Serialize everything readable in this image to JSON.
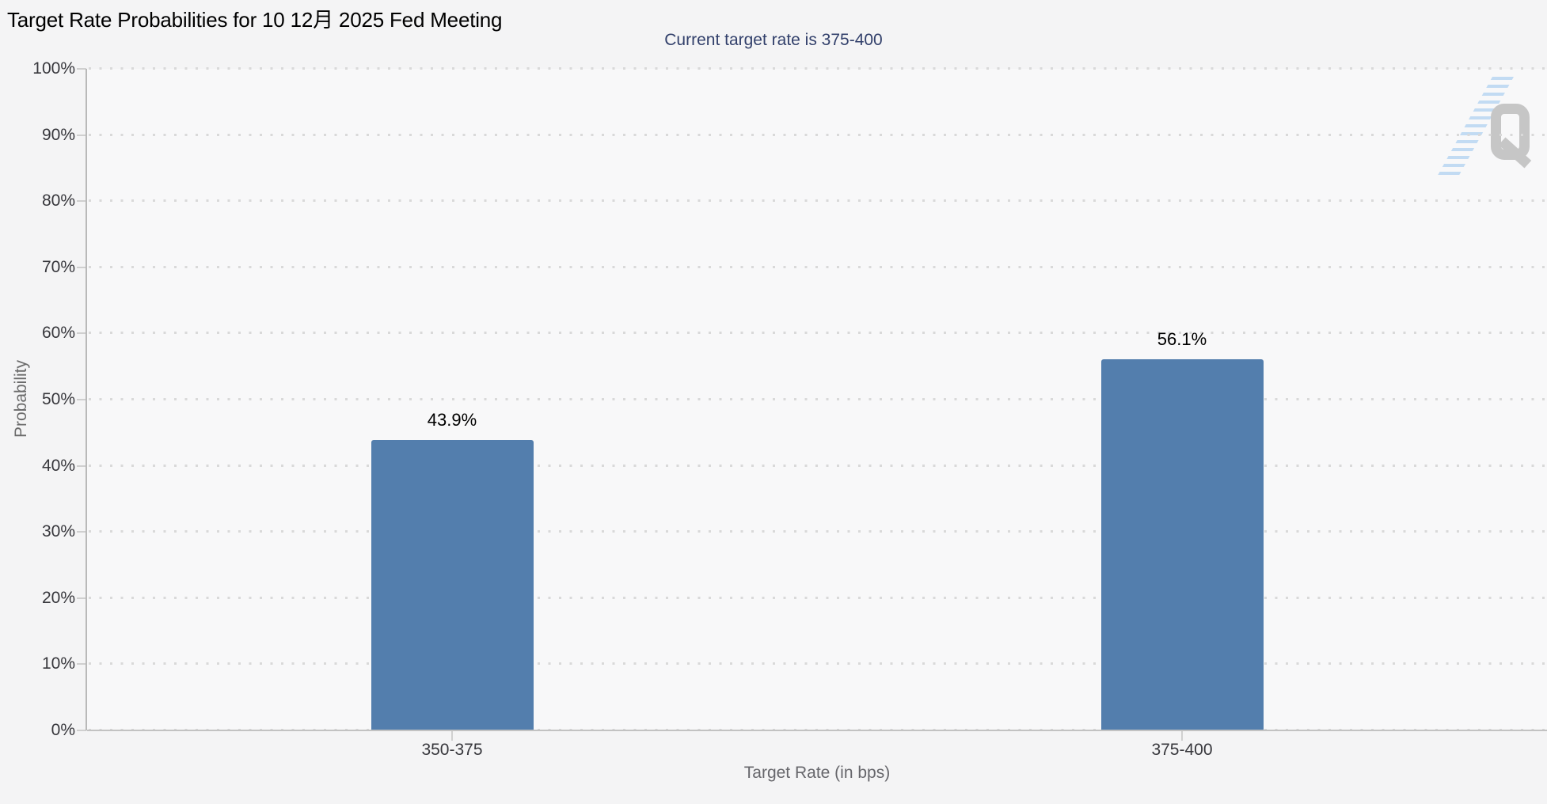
{
  "header": {
    "title": "Target Rate Probabilities for 10 12月 2025 Fed Meeting",
    "subtitle": "Current target rate is 375-400"
  },
  "chart_data": {
    "type": "bar",
    "title": "Target Rate Probabilities for 10 12月 2025 Fed Meeting",
    "subtitle": "Current target rate is 375-400",
    "categories": [
      "350-375",
      "375-400"
    ],
    "values": [
      43.9,
      56.1
    ],
    "value_labels": [
      "43.9%",
      "56.1%"
    ],
    "xlabel": "Target Rate (in bps)",
    "ylabel": "Probability",
    "ylim": [
      0,
      100
    ],
    "ytick_step": 10,
    "ytick_labels": [
      "0%",
      "10%",
      "20%",
      "30%",
      "40%",
      "50%",
      "60%",
      "70%",
      "80%",
      "90%",
      "100%"
    ],
    "grid": "dotted-horizontal",
    "legend_position": "none",
    "bar_color": "#537EAD"
  },
  "logo": {
    "letter": "Q",
    "q_color": "#c6c6c6",
    "hatch_color": "#bcd8f2"
  },
  "colors": {
    "page_background": "#f4f4f5",
    "plot_background": "#f8f8f9",
    "subtitle_text": "#32406b",
    "tick_text": "#37373c",
    "axis_title_text": "#66666b",
    "gridline": "#d9d9d9",
    "axis_line": "#c2c2c2"
  }
}
